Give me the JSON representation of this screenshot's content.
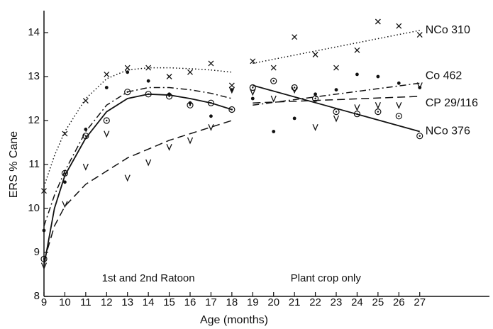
{
  "chart_data": {
    "type": "scatter",
    "xlabel": "Age (months)",
    "ylabel": "ERS % Cane",
    "color": "#111111",
    "xlim": [
      9,
      30
    ],
    "ylim": [
      8,
      14.5
    ],
    "xticks": [
      9,
      10,
      11,
      12,
      13,
      14,
      15,
      16,
      17,
      18,
      19,
      20,
      21,
      22,
      23,
      24,
      25,
      26,
      27
    ],
    "yticks": [
      8,
      9,
      10,
      11,
      12,
      13,
      14
    ],
    "annotations": [
      {
        "text": "1st and 2nd Ratoon",
        "x": 14,
        "y": 8.4
      },
      {
        "text": "Plant crop only",
        "x": 22.5,
        "y": 8.4
      }
    ],
    "x": [
      9,
      10,
      11,
      12,
      13,
      14,
      15,
      16,
      17,
      18,
      19,
      20,
      21,
      22,
      23,
      24,
      25,
      26,
      27
    ],
    "series": [
      {
        "name": "NCo 310",
        "marker": "x",
        "line": "dotted",
        "values": [
          10.4,
          11.7,
          12.45,
          13.05,
          13.2,
          13.2,
          13.0,
          13.1,
          13.3,
          12.8,
          13.35,
          13.2,
          13.9,
          13.5,
          13.2,
          13.6,
          14.25,
          14.15,
          13.95
        ],
        "fit": {
          "x": [
            9,
            9.5,
            10,
            11,
            12,
            13,
            14,
            15,
            16,
            17,
            18,
            18.5,
            19,
            27
          ],
          "values": [
            10.5,
            11.2,
            11.75,
            12.5,
            12.95,
            13.15,
            13.2,
            13.2,
            13.18,
            13.15,
            13.1,
            null,
            13.3,
            14.05
          ]
        }
      },
      {
        "name": "Co 462",
        "marker": "dot",
        "line": "dashdot",
        "values": [
          9.5,
          10.6,
          11.8,
          12.75,
          13.1,
          12.9,
          12.6,
          12.4,
          12.1,
          12.7,
          12.5,
          11.75,
          12.05,
          12.6,
          12.7,
          13.05,
          13.0,
          12.85,
          12.75
        ],
        "fit": {
          "x": [
            9,
            9.5,
            10,
            11,
            12,
            13,
            14,
            15,
            16,
            17,
            18,
            18.5,
            19,
            27
          ],
          "values": [
            9.6,
            10.3,
            10.85,
            11.75,
            12.35,
            12.65,
            12.75,
            12.75,
            12.7,
            12.62,
            12.5,
            null,
            12.35,
            12.85
          ]
        }
      },
      {
        "name": "CP 29/116",
        "marker": "v",
        "line": "dashed",
        "values": [
          8.7,
          10.1,
          10.95,
          11.7,
          10.7,
          11.05,
          11.4,
          11.55,
          11.85,
          12.7,
          12.65,
          12.5,
          12.7,
          11.85,
          12.05,
          12.3,
          12.35,
          12.35,
          12.8
        ],
        "fit": {
          "x": [
            9,
            9.5,
            10,
            11,
            12,
            13,
            14,
            15,
            16,
            17,
            18,
            18.5,
            19,
            27
          ],
          "values": [
            8.8,
            9.6,
            10.05,
            10.55,
            10.85,
            11.15,
            11.35,
            11.55,
            11.7,
            11.85,
            12.0,
            null,
            12.4,
            12.55
          ]
        }
      },
      {
        "name": "NCo 376",
        "marker": "circle-dot",
        "line": "solid",
        "values": [
          8.85,
          10.8,
          11.65,
          12.0,
          12.65,
          12.6,
          12.55,
          12.35,
          12.4,
          12.25,
          12.75,
          12.9,
          12.75,
          12.5,
          12.2,
          12.15,
          12.2,
          12.1,
          11.65
        ],
        "fit": {
          "x": [
            9,
            9.5,
            10,
            11,
            12,
            13,
            14,
            15,
            16,
            17,
            18,
            18.5,
            19,
            27
          ],
          "values": [
            8.7,
            10.0,
            10.75,
            11.6,
            12.2,
            12.5,
            12.6,
            12.58,
            12.5,
            12.4,
            12.25,
            null,
            12.8,
            11.75
          ]
        }
      }
    ]
  }
}
